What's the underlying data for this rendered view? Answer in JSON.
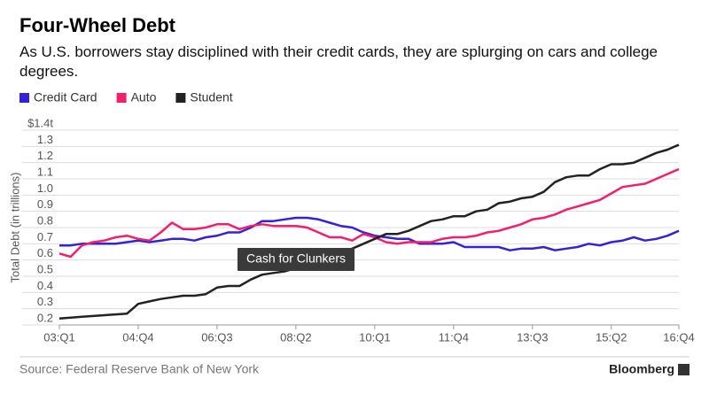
{
  "chart_data": {
    "type": "line",
    "title": "Four-Wheel Debt",
    "subtitle": "As U.S. borrowers stay disciplined with their credit cards, they are splurging on cars and college degrees.",
    "y_label": "Total Debt (in trillions)",
    "source": "Source: Federal Reserve Bank of New York",
    "brand": "Bloomberg",
    "annotation": {
      "text": "Cash for Clunkers"
    },
    "categories": [
      "03:Q1",
      null,
      null,
      null,
      null,
      null,
      null,
      "04:Q4",
      null,
      null,
      null,
      null,
      null,
      null,
      "06:Q3",
      null,
      null,
      null,
      null,
      null,
      null,
      "08:Q2",
      null,
      null,
      null,
      null,
      null,
      null,
      "10:Q1",
      null,
      null,
      null,
      null,
      null,
      null,
      "11:Q4",
      null,
      null,
      null,
      null,
      null,
      null,
      "13:Q3",
      null,
      null,
      null,
      null,
      null,
      null,
      "15:Q2",
      null,
      null,
      null,
      null,
      null,
      "16:Q4"
    ],
    "series": [
      {
        "name": "Credit Card",
        "color": "#3421d8",
        "values": [
          0.69,
          0.69,
          0.7,
          0.7,
          0.7,
          0.7,
          0.71,
          0.72,
          0.71,
          0.72,
          0.73,
          0.73,
          0.72,
          0.74,
          0.75,
          0.77,
          0.77,
          0.8,
          0.84,
          0.84,
          0.85,
          0.86,
          0.86,
          0.85,
          0.83,
          0.81,
          0.8,
          0.77,
          0.75,
          0.74,
          0.73,
          0.73,
          0.7,
          0.7,
          0.7,
          0.71,
          0.68,
          0.68,
          0.68,
          0.68,
          0.66,
          0.67,
          0.67,
          0.68,
          0.66,
          0.67,
          0.68,
          0.7,
          0.69,
          0.71,
          0.72,
          0.74,
          0.72,
          0.73,
          0.75,
          0.78
        ]
      },
      {
        "name": "Auto",
        "color": "#f2206b",
        "values": [
          0.64,
          0.62,
          0.69,
          0.71,
          0.72,
          0.74,
          0.75,
          0.73,
          0.72,
          0.77,
          0.83,
          0.79,
          0.79,
          0.8,
          0.82,
          0.82,
          0.79,
          0.81,
          0.82,
          0.81,
          0.81,
          0.81,
          0.8,
          0.77,
          0.74,
          0.74,
          0.72,
          0.76,
          0.74,
          0.71,
          0.7,
          0.71,
          0.71,
          0.71,
          0.73,
          0.74,
          0.74,
          0.75,
          0.77,
          0.78,
          0.8,
          0.82,
          0.85,
          0.86,
          0.88,
          0.91,
          0.93,
          0.95,
          0.97,
          1.01,
          1.05,
          1.06,
          1.07,
          1.1,
          1.13,
          1.16
        ]
      },
      {
        "name": "Student",
        "color": "#222222",
        "values": [
          0.24,
          0.245,
          0.25,
          0.255,
          0.26,
          0.265,
          0.27,
          0.33,
          0.345,
          0.36,
          0.37,
          0.38,
          0.38,
          0.39,
          0.43,
          0.44,
          0.44,
          0.48,
          0.51,
          0.52,
          0.53,
          0.55,
          0.58,
          0.59,
          0.61,
          0.64,
          0.67,
          0.7,
          0.73,
          0.76,
          0.76,
          0.78,
          0.81,
          0.84,
          0.85,
          0.87,
          0.87,
          0.9,
          0.91,
          0.95,
          0.96,
          0.98,
          0.99,
          1.02,
          1.08,
          1.11,
          1.12,
          1.12,
          1.16,
          1.19,
          1.19,
          1.2,
          1.23,
          1.26,
          1.28,
          1.31
        ]
      }
    ],
    "ylim": [
      0.2,
      1.4
    ],
    "yticks": [
      0.2,
      0.3,
      0.4,
      0.5,
      0.6,
      0.7,
      0.8,
      0.9,
      {
        "value": 1,
        "label": "1.0"
      },
      1.1,
      1.2,
      1.3,
      {
        "value": 1.4,
        "label": "$1.4t"
      }
    ],
    "grid": true
  }
}
